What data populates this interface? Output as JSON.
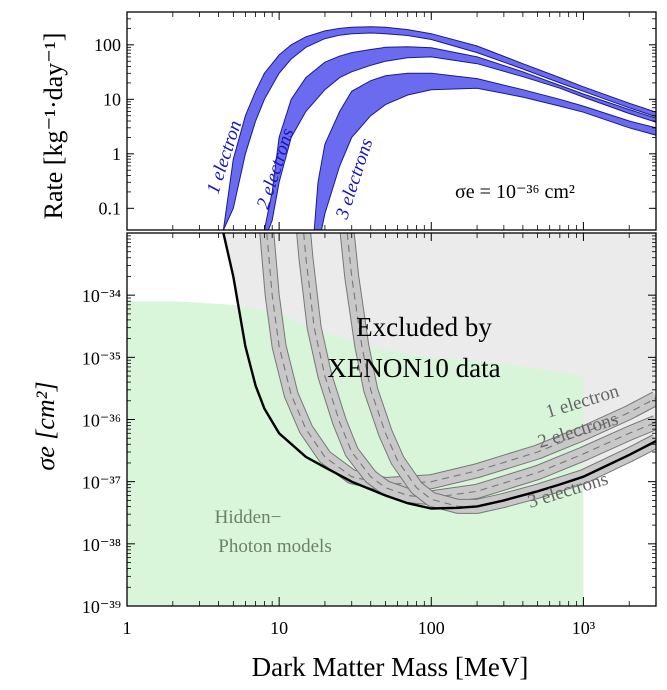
{
  "chart_data": [
    {
      "type": "area",
      "panel": "top",
      "title": "",
      "xlabel": "",
      "ylabel": "Rate [kg⁻¹·day⁻¹]",
      "x_scale": "log",
      "y_scale": "log",
      "xlim": [
        1,
        3000
      ],
      "ylim": [
        0.04,
        400
      ],
      "y_ticks": [
        "0.1",
        "1",
        "10",
        "100"
      ],
      "y_tick_values": [
        0.1,
        1,
        10,
        100
      ],
      "annotation": "σe = 10⁻³⁶ cm²",
      "band_color": "#6b6bef",
      "series": [
        {
          "name": "1 electron",
          "upper": {
            "x": [
              4.3,
              5,
              6,
              7,
              8,
              10,
              12,
              15,
              20,
              25,
              30,
              40,
              50,
              70,
              100,
              200,
              400,
              700,
              1000,
              2000,
              3000
            ],
            "y": [
              0.04,
              0.8,
              5,
              14,
              30,
              65,
              100,
              140,
              180,
              200,
              210,
              215,
              210,
              190,
              160,
              95,
              45,
              25,
              17,
              8.5,
              5.8
            ]
          },
          "lower": {
            "x": [
              4.3,
              5,
              6,
              7,
              8,
              10,
              12,
              15,
              20,
              25,
              30,
              40,
              50,
              70,
              100,
              200,
              400,
              700,
              1000,
              2000,
              3000
            ],
            "y": [
              0.04,
              0.1,
              1,
              4,
              10,
              30,
              55,
              90,
              130,
              150,
              160,
              165,
              160,
              148,
              125,
              72,
              36,
              20,
              14,
              7,
              4.8
            ]
          }
        },
        {
          "name": "2 electrons",
          "upper": {
            "x": [
              8,
              9,
              10,
              12,
              15,
              20,
              25,
              30,
              40,
              50,
              70,
              100,
              200,
              400,
              700,
              1000,
              2000,
              3000
            ],
            "y": [
              0.04,
              0.2,
              2,
              10,
              25,
              48,
              62,
              72,
              82,
              90,
              92,
              88,
              60,
              32,
              18,
              12.5,
              6.5,
              4.5
            ]
          },
          "lower": {
            "x": [
              8.5,
              9,
              10,
              12,
              15,
              20,
              25,
              30,
              40,
              50,
              70,
              100,
              200,
              400,
              700,
              1000,
              2000,
              3000
            ],
            "y": [
              0.04,
              0.06,
              0.3,
              2,
              6,
              15,
              25,
              32,
              42,
              50,
              58,
              60,
              45,
              26,
              16,
              11,
              5.5,
              3.8
            ]
          }
        },
        {
          "name": "3 electrons",
          "upper": {
            "x": [
              17,
              18,
              20,
              25,
              30,
              40,
              50,
              70,
              100,
              200,
              400,
              700,
              1000,
              2000,
              3000
            ],
            "y": [
              0.04,
              0.3,
              1.5,
              6,
              14,
              22,
              27,
              30,
              30,
              24,
              15,
              10,
              7.5,
              4,
              3
            ]
          },
          "lower": {
            "x": [
              19,
              20,
              25,
              30,
              40,
              50,
              70,
              100,
              200,
              400,
              700,
              1000,
              2000,
              3000
            ],
            "y": [
              0.04,
              0.08,
              0.6,
              2,
              5,
              8,
              12,
              15,
              16,
              11,
              7.5,
              5.8,
              3,
              2.2
            ]
          }
        }
      ],
      "band_labels": [
        "1 electron",
        "2 electrons",
        "3 electrons"
      ]
    },
    {
      "type": "area",
      "panel": "bottom",
      "title": "",
      "xlabel": "Dark Matter Mass [MeV]",
      "ylabel": "σe [cm²]",
      "x_scale": "log",
      "y_scale": "log",
      "xlim": [
        1,
        3000
      ],
      "ylim": [
        1e-39,
        1e-33
      ],
      "x_ticks": [
        "1",
        "10",
        "100",
        "10³"
      ],
      "x_tick_values": [
        1,
        10,
        100,
        1000
      ],
      "y_ticks": [
        "10⁻³⁹",
        "10⁻³⁸",
        "10⁻³⁷",
        "10⁻³⁶",
        "10⁻³⁵",
        "10⁻³⁴"
      ],
      "y_tick_values": [
        1e-39,
        1e-38,
        1e-37,
        1e-36,
        1e-35,
        1e-34
      ],
      "excluded_label": [
        "Excluded by",
        "XENON10 data"
      ],
      "model_label": [
        "Hidden−",
        "Photon models"
      ],
      "colors": {
        "excluded": "#ebebeb",
        "model": "#d8f5d8",
        "band": "#c8c8c8",
        "limit": "#000000"
      },
      "hidden_photon_region": {
        "x": [
          1,
          2,
          5,
          10,
          20,
          50,
          100,
          300,
          1000
        ],
        "y_top": [
          8e-35,
          8e-35,
          7e-35,
          5e-35,
          2.5e-35,
          1.3e-35,
          1e-35,
          8e-36,
          5e-36
        ],
        "y_bottom": 1e-39
      },
      "limit_curve": {
        "name": "combined limit",
        "x": [
          4.3,
          5,
          6,
          7,
          8,
          10,
          15,
          20,
          30,
          50,
          70,
          100,
          150,
          200,
          300,
          500,
          700,
          1000,
          2000,
          3000
        ],
        "y": [
          1e-33,
          2e-34,
          1.5e-35,
          3.5e-36,
          1.5e-36,
          6e-37,
          2.5e-37,
          1.7e-37,
          1e-37,
          6e-38,
          4.5e-38,
          3.7e-38,
          3.8e-38,
          4e-38,
          5e-38,
          7e-38,
          9e-38,
          1.2e-37,
          2.7e-37,
          4.5e-37
        ]
      },
      "series": [
        {
          "name": "1 electron",
          "center": {
            "x": [
              8.3,
              9,
              10,
              12,
              15,
              20,
              30,
              50,
              100,
              200,
              500,
              1000,
              2000,
              3000
            ],
            "y": [
              1e-33,
              1e-34,
              1.5e-35,
              2.5e-36,
              7e-37,
              2.5e-37,
              1.2e-37,
              9e-38,
              1e-37,
              1.5e-37,
              3e-37,
              6e-37,
              1.3e-36,
              2.2e-36
            ]
          }
        },
        {
          "name": "2 electrons",
          "center": {
            "x": [
              14.5,
              15,
              17,
              20,
              25,
              30,
              40,
              50,
              70,
              100,
              200,
              500,
              1000,
              2000,
              3000
            ],
            "y": [
              1e-33,
              4e-34,
              3e-35,
              5e-36,
              9e-37,
              3e-37,
              1.2e-37,
              8e-38,
              6e-38,
              5.5e-38,
              7e-38,
              1.4e-37,
              2.8e-37,
              6e-37,
              9e-37
            ]
          }
        },
        {
          "name": "3 electrons",
          "center": {
            "x": [
              28,
              30,
              35,
              40,
              50,
              60,
              80,
              100,
              150,
              200,
              300,
              500,
              1000,
              2000,
              3000
            ],
            "y": [
              1e-33,
              2e-34,
              1.5e-35,
              3e-36,
              6e-37,
              2.2e-37,
              8e-38,
              5.2e-38,
              4e-38,
              4e-38,
              5e-38,
              7e-38,
              1.2e-37,
              2.7e-37,
              4.5e-37
            ]
          }
        }
      ],
      "band_labels": [
        "1 electron",
        "2 electrons",
        "3 electrons"
      ]
    }
  ]
}
